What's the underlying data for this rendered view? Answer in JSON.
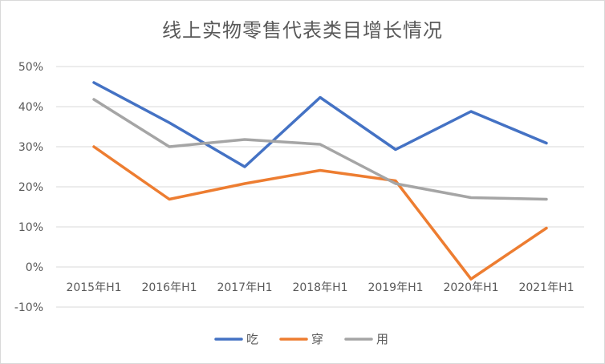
{
  "chart_data": {
    "type": "line",
    "title": "线上实物零售代表类目增长情况",
    "categories": [
      "2015年H1",
      "2016年H1",
      "2017年H1",
      "2018年H1",
      "2019年H1",
      "2020年H1",
      "2021年H1"
    ],
    "y_ticks": [
      "50%",
      "40%",
      "30%",
      "20%",
      "10%",
      "0%",
      "-10%"
    ],
    "ylim": [
      -0.1,
      0.5
    ],
    "grid": true,
    "legend": "bottom",
    "series": [
      {
        "name": "吃",
        "color": "#4472C4",
        "values": [
          0.46,
          0.36,
          0.25,
          0.423,
          0.293,
          0.388,
          0.309
        ]
      },
      {
        "name": "穿",
        "color": "#ED7D31",
        "values": [
          0.3,
          0.169,
          0.208,
          0.241,
          0.215,
          -0.03,
          0.097
        ]
      },
      {
        "name": "用",
        "color": "#A5A5A5",
        "values": [
          0.418,
          0.3,
          0.318,
          0.306,
          0.208,
          0.173,
          0.169
        ]
      }
    ]
  }
}
